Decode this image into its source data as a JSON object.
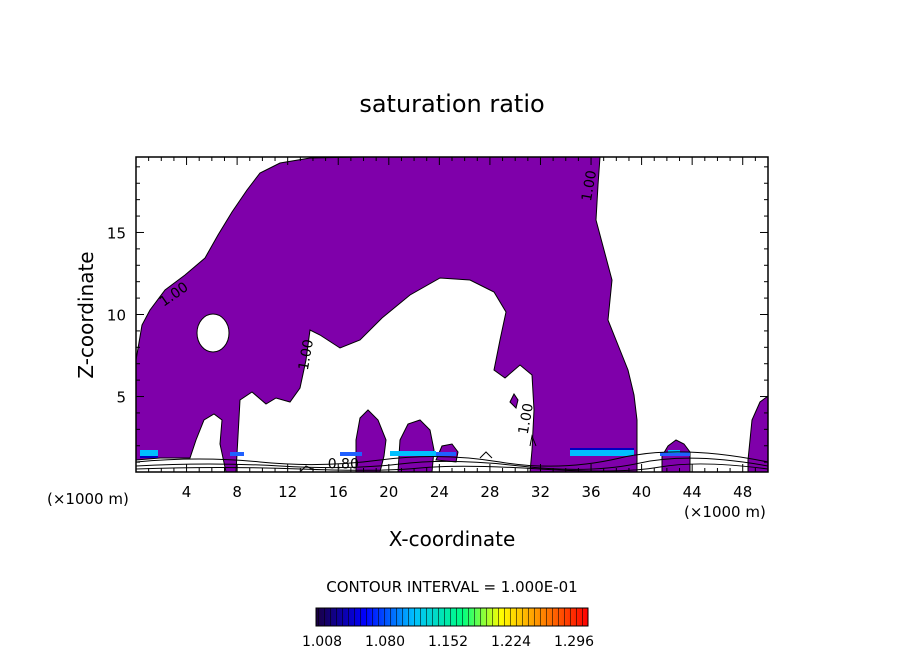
{
  "chart_data": {
    "type": "contour",
    "title": "saturation ratio",
    "xlabel": "X-coordinate",
    "ylabel": "Z-coordinate",
    "x_unit": "(×1000 m)",
    "x_unit_right": "(×1000 m)",
    "x_ticks": [
      4,
      8,
      12,
      16,
      20,
      24,
      28,
      32,
      36,
      40,
      44,
      48
    ],
    "y_ticks": [
      5,
      10,
      15
    ],
    "xlim": [
      0,
      50
    ],
    "ylim": [
      0.4,
      19.6
    ],
    "contour_interval_text": "CONTOUR INTERVAL = 1.000E-01",
    "contour_labels": [
      {
        "text": "1.00",
        "x": 3.2,
        "y": 11.0
      },
      {
        "text": "1.00",
        "x": 13.8,
        "y": 7.5
      },
      {
        "text": "1.00",
        "x": 31.2,
        "y": 3.6
      },
      {
        "text": "1.00",
        "x": 36.2,
        "y": 17.8
      },
      {
        "text": "0.80",
        "x": 16.4,
        "y": 0.6
      }
    ],
    "colorbar": {
      "tick_labels": [
        "1.008",
        "1.080",
        "1.152",
        "1.224",
        "1.296"
      ],
      "colors": [
        "#1a0040",
        "#0000ff",
        "#00c0ff",
        "#00ff80",
        "#ffff00",
        "#ff8000",
        "#ff0000"
      ]
    },
    "fill_color": "#7f00aa",
    "line_color": "#000000"
  }
}
